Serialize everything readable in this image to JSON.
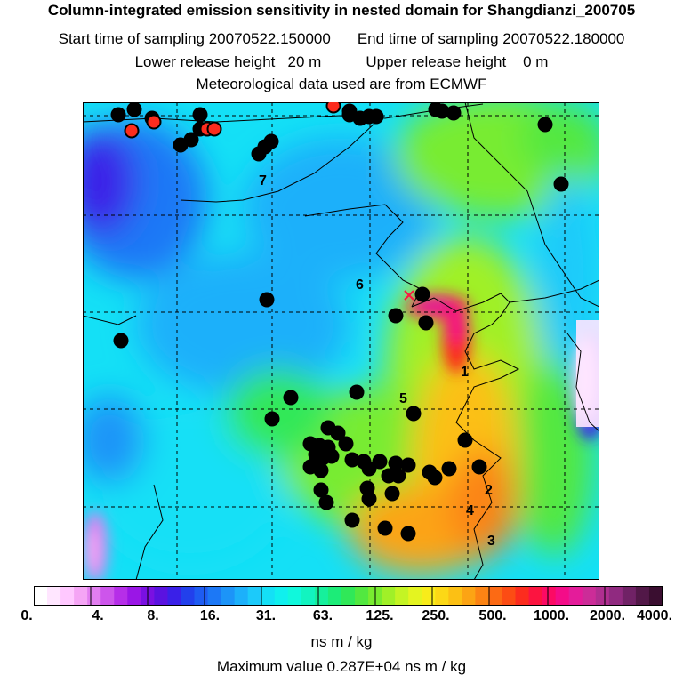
{
  "header": {
    "title": "Column-integrated emission sensitivity in nested domain for Shangdianzi_200705",
    "start_time": "Start time of sampling 20070522.150000",
    "end_time": "End time of sampling 20070522.180000",
    "lower_release": "Lower release height   20 m",
    "upper_release": "Upper release height    0 m",
    "met_data": "Meteorological data used are from ECMWF"
  },
  "colorbar": {
    "tick_labels": [
      "0.",
      "4.",
      "8.",
      "16.",
      "31.",
      "63.",
      "125.",
      "250.",
      "500.",
      "1000.",
      "2000.",
      "4000."
    ],
    "colors": [
      "#ffffff",
      "#ffe6ff",
      "#ffc8ff",
      "#f5a5f5",
      "#e27ef0",
      "#cd55eb",
      "#b62ee8",
      "#9a16e6",
      "#7a10e2",
      "#5a12e0",
      "#3a20e8",
      "#2240ec",
      "#1e5cf2",
      "#1c78f6",
      "#1c94f8",
      "#1cb0fa",
      "#1ccafa",
      "#14e0f6",
      "#10f0ee",
      "#10f8dc",
      "#12f4c0",
      "#16f09c",
      "#1cec78",
      "#30e858",
      "#52e840",
      "#78ec30",
      "#a0f028",
      "#c4f424",
      "#e4f420",
      "#f8ec1a",
      "#fcd816",
      "#fcc014",
      "#fca414",
      "#fc8414",
      "#fc6a14",
      "#fc4c14",
      "#fc2c1e",
      "#fc1440",
      "#fc0a64",
      "#f40c88",
      "#e41c9a",
      "#cc2c98",
      "#b02e90",
      "#902a80",
      "#702266",
      "#521848",
      "#3a0e30"
    ]
  },
  "units": "ns m / kg",
  "max_value": "Maximum value  0.287E+04 ns m / kg",
  "map": {
    "place_labels": [
      "7",
      "6",
      "5",
      "1",
      "2",
      "4",
      "3"
    ]
  }
}
